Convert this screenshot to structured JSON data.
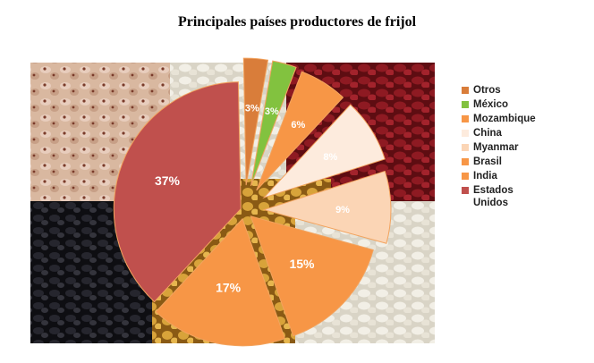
{
  "chart_data": {
    "type": "pie",
    "title": "Principales países productores de frijol",
    "series": [
      {
        "name": "Otros",
        "percent_label": "3%",
        "value": 3,
        "color": "#D97D3A"
      },
      {
        "name": "México",
        "percent_label": "3%",
        "value": 3,
        "color": "#82C23F"
      },
      {
        "name": "Mozambique",
        "percent_label": "6%",
        "value": 6,
        "color": "#F79646"
      },
      {
        "name": "China",
        "percent_label": "8%",
        "value": 8,
        "color": "#FDEBDD"
      },
      {
        "name": "Myanmar",
        "percent_label": "9%",
        "value": 9,
        "color": "#FBD5B5"
      },
      {
        "name": "Brasil",
        "percent_label": "15%",
        "value": 15,
        "color": "#F79646"
      },
      {
        "name": "India",
        "percent_label": "17%",
        "value": 17,
        "color": "#F79646"
      },
      {
        "name": "Estados Unidos",
        "percent_label": "37%",
        "value": 37,
        "color": "#C0504D"
      }
    ],
    "legend_position": "right",
    "background_image": "beans-photo"
  }
}
